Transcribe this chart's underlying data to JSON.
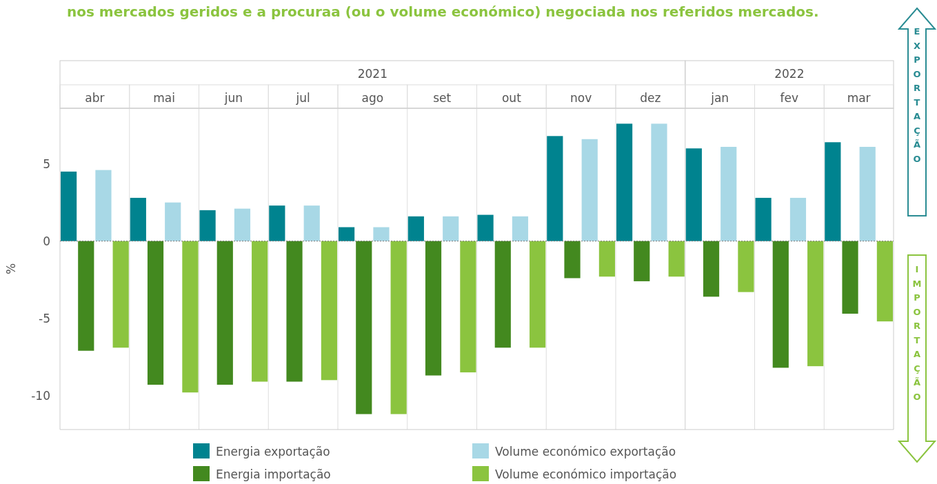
{
  "chart_data": {
    "type": "bar",
    "title": "nos mercados geridos e a procuraa (ou o volume económico) negociada nos referidos mercados.",
    "ylabel": "%",
    "categories": [
      "abr",
      "mai",
      "jun",
      "jul",
      "ago",
      "set",
      "out",
      "nov",
      "dez",
      "jan",
      "fev",
      "mar"
    ],
    "series": [
      {
        "name": "Energia exportação",
        "color": "#00838f",
        "values": [
          4.5,
          2.8,
          2.0,
          2.3,
          0.9,
          1.6,
          1.7,
          6.8,
          7.6,
          6.0,
          2.8,
          6.4
        ]
      },
      {
        "name": "Energia importação",
        "color": "#43891f",
        "values": [
          -7.1,
          -9.3,
          -9.3,
          -9.1,
          -11.2,
          -8.7,
          -6.9,
          -2.4,
          -2.6,
          -3.6,
          -8.2,
          -4.7
        ]
      },
      {
        "name": "Volume económico exportação",
        "color": "#a8d8e6",
        "values": [
          4.6,
          2.5,
          2.1,
          2.3,
          0.9,
          1.6,
          1.6,
          6.6,
          7.6,
          6.1,
          2.8,
          6.1
        ]
      },
      {
        "name": "Volume económico importação",
        "color": "#8bc43f",
        "values": [
          -6.9,
          -9.8,
          -9.1,
          -9.0,
          -11.2,
          -8.5,
          -6.9,
          -2.3,
          -2.3,
          -3.3,
          -8.1,
          -5.2
        ]
      }
    ],
    "ylim": [
      -12.2,
      8.6
    ],
    "yticks": [
      5,
      0,
      -5,
      -10
    ],
    "legend": "bottom",
    "ref_lines": [
      {
        "axis": "x",
        "value": "jan",
        "color": "#cccccc"
      },
      {
        "axis": "y",
        "value": 0,
        "color": "#777777",
        "line_style": "dotted"
      }
    ],
    "annotations": [
      "2021",
      "2022",
      "EXPORTAÇÃO",
      "IMPORTAÇÃO"
    ]
  }
}
